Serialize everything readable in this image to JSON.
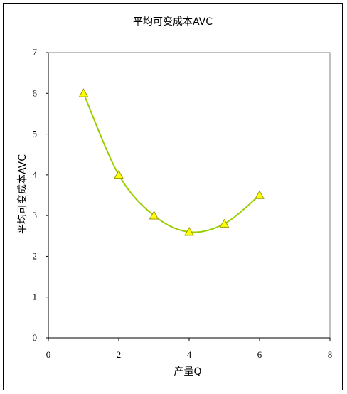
{
  "chart_data": {
    "type": "line",
    "title": "平均可变成本AVC",
    "xlabel": "产量Q",
    "ylabel": "平均可变成本AVC",
    "x": [
      1,
      2,
      3,
      4,
      5,
      6
    ],
    "series": [
      {
        "values": [
          6,
          4,
          3,
          2.6,
          2.8,
          3.5
        ],
        "color": "#9acd00",
        "marker": "triangle",
        "marker_color": "#ffff00",
        "smooth": true
      }
    ],
    "xlim": [
      0,
      8
    ],
    "ylim": [
      0,
      7
    ],
    "xticks": [
      0,
      2,
      4,
      6,
      8
    ],
    "yticks": [
      0,
      1,
      2,
      3,
      4,
      5,
      6,
      7
    ],
    "grid": false,
    "legend": "none"
  }
}
